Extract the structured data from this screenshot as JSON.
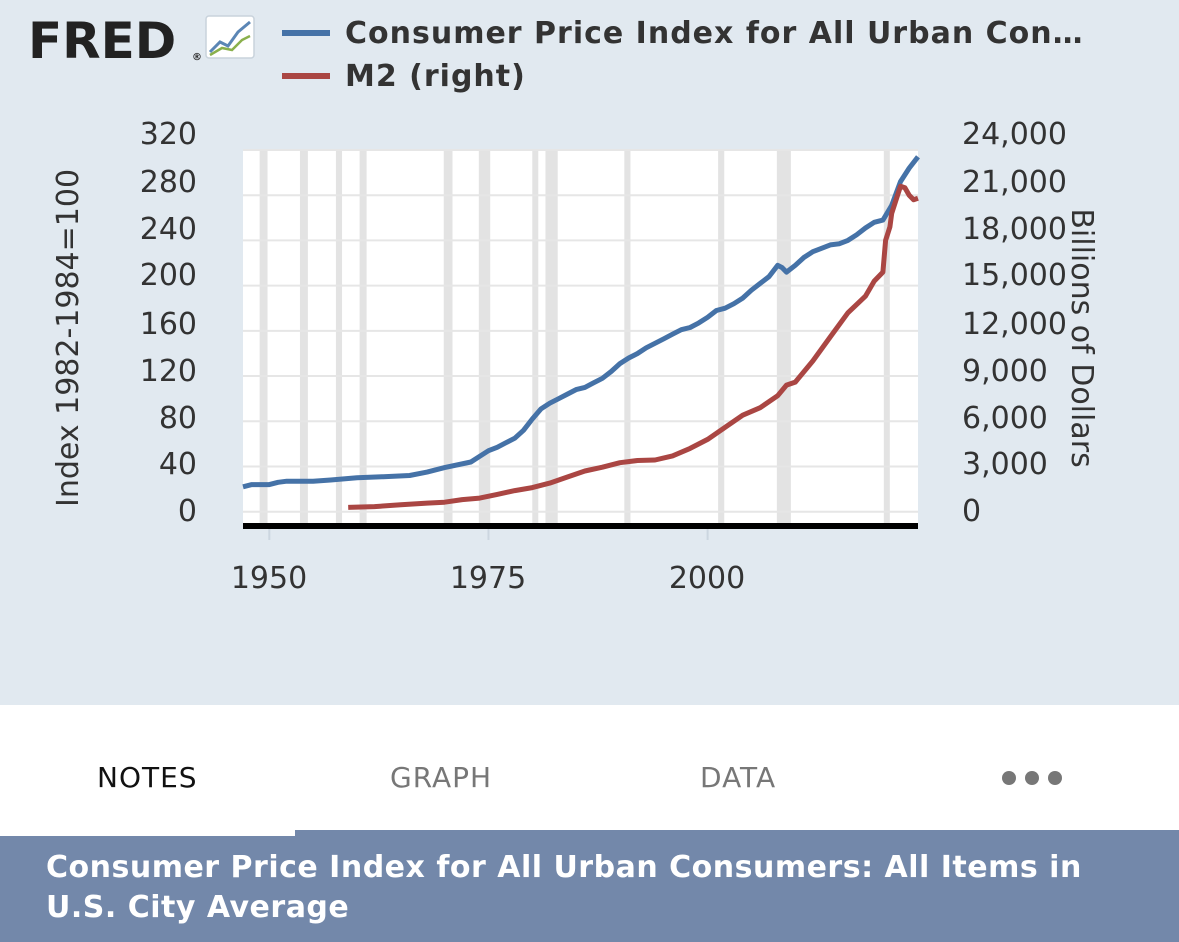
{
  "logo": {
    "text": "FRED",
    "registered": "®",
    "icon": "trend-chart-icon"
  },
  "tabs": {
    "notes": "NOTES",
    "graph": "GRAPH",
    "data": "DATA",
    "more_icon": "more-dots-icon"
  },
  "footer": {
    "title": "Consumer Price Index for All Urban Consumers: All Items in U.S. City Average"
  },
  "chart_data": {
    "type": "line",
    "legend": [
      {
        "label": "Consumer Price Index for All Urban Con…",
        "color": "#4572a7"
      },
      {
        "label": "M2 (right)",
        "color": "#aa4643"
      }
    ],
    "legend_position": "top",
    "ylabel_left": "Index 1982-1984=100",
    "ylabel_right": "Billions of Dollars",
    "y_left_ticks": [
      "0",
      "40",
      "80",
      "120",
      "160",
      "200",
      "240",
      "280",
      "320"
    ],
    "y_right_ticks": [
      "0",
      "3,000",
      "6,000",
      "9,000",
      "12,000",
      "15,000",
      "18,000",
      "21,000",
      "24,000"
    ],
    "x_ticks": [
      "1950",
      "1975",
      "2000"
    ],
    "xlim": [
      1947,
      2024
    ],
    "ylim_left": [
      -10,
      320
    ],
    "ylim_right": [
      -750,
      24000
    ],
    "grid": true,
    "recessions": [
      [
        1948.9,
        1949.8
      ],
      [
        1953.5,
        1954.4
      ],
      [
        1957.6,
        1958.3
      ],
      [
        1960.3,
        1961.1
      ],
      [
        1969.9,
        1970.9
      ],
      [
        1973.9,
        1975.2
      ],
      [
        1980.0,
        1980.5
      ],
      [
        1981.5,
        1982.9
      ],
      [
        1990.5,
        1991.2
      ],
      [
        2001.2,
        2001.9
      ],
      [
        2007.9,
        2009.5
      ],
      [
        2020.1,
        2020.4
      ]
    ],
    "series": [
      {
        "name": "Consumer Price Index for All Urban Con…",
        "axis": "left",
        "color": "#4572a7",
        "x": [
          1947,
          1948,
          1949,
          1950,
          1951,
          1952,
          1955,
          1957,
          1960,
          1963,
          1966,
          1968,
          1970,
          1973,
          1974,
          1975,
          1976,
          1977,
          1978,
          1979,
          1980,
          1981,
          1982,
          1983,
          1984,
          1985,
          1986,
          1987,
          1988,
          1989,
          1990,
          1991,
          1992,
          1993,
          1994,
          1995,
          1996,
          1997,
          1998,
          1999,
          2000,
          2001,
          2002,
          2003,
          2004,
          2005,
          2006,
          2007,
          2008,
          2008.5,
          2009,
          2010,
          2011,
          2012,
          2013,
          2014,
          2015,
          2016,
          2017,
          2018,
          2019,
          2020,
          2021,
          2022,
          2023,
          2024
        ],
        "values": [
          22,
          24,
          24,
          24,
          26,
          27,
          27,
          28,
          30,
          31,
          32,
          35,
          39,
          44,
          49,
          54,
          57,
          61,
          65,
          72,
          82,
          91,
          96,
          100,
          104,
          108,
          110,
          114,
          118,
          124,
          131,
          136,
          140,
          145,
          149,
          153,
          157,
          161,
          163,
          167,
          172,
          178,
          180,
          184,
          189,
          196,
          202,
          208,
          218,
          216,
          212,
          218,
          225,
          230,
          233,
          236,
          237,
          240,
          245,
          251,
          256,
          258,
          271,
          292,
          304,
          314
        ]
      },
      {
        "name": "M2 (right)",
        "axis": "right",
        "color": "#aa4643",
        "x": [
          1959,
          1962,
          1965,
          1968,
          1970,
          1972,
          1974,
          1976,
          1978,
          1980,
          1982,
          1984,
          1986,
          1988,
          1990,
          1992,
          1994,
          1996,
          1998,
          2000,
          2002,
          2004,
          2006,
          2008,
          2009,
          2010,
          2012,
          2014,
          2016,
          2018,
          2019,
          2020,
          2020.3,
          2020.8,
          2021,
          2021.5,
          2022,
          2022.5,
          2023,
          2023.5,
          2024
        ],
        "values": [
          286,
          340,
          460,
          570,
          630,
          800,
          900,
          1150,
          1400,
          1600,
          1900,
          2300,
          2700,
          2950,
          3250,
          3400,
          3430,
          3700,
          4200,
          4800,
          5600,
          6400,
          6900,
          7700,
          8400,
          8600,
          10000,
          11600,
          13200,
          14300,
          15300,
          15900,
          18000,
          18900,
          19800,
          20700,
          21600,
          21500,
          21000,
          20700,
          20800
        ]
      }
    ]
  }
}
